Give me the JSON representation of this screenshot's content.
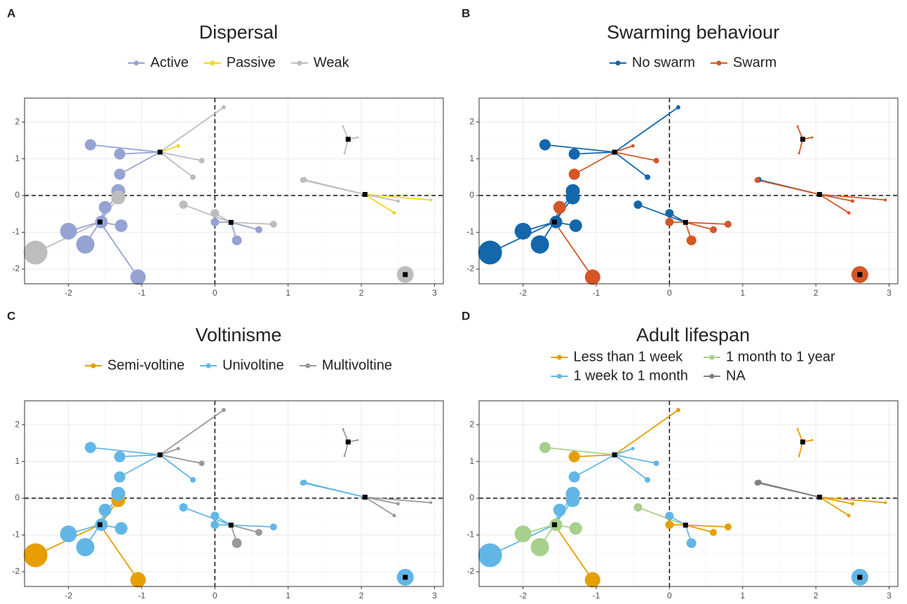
{
  "chart_data": [
    {
      "type": "scatter",
      "label": "A",
      "title": "Dispersal",
      "xlim": [
        -2.6,
        3.12
      ],
      "ylim": [
        -2.4,
        2.65
      ],
      "xticks": [
        -2,
        -1,
        0,
        1,
        2,
        3
      ],
      "yticks": [
        -2,
        -1,
        0,
        1,
        2
      ],
      "grid": true,
      "reference_lines": {
        "x": 0,
        "y": 0
      },
      "centroids": {
        "x": [
          -0.75,
          -1.57,
          0.22,
          2.05,
          1.82,
          2.6
        ],
        "y": [
          1.18,
          -0.72,
          -0.73,
          0.03,
          1.53,
          -2.15
        ]
      },
      "series": [
        {
          "name": "Active",
          "color": "#95a3d3",
          "x": [
            -1.7,
            -1.3,
            -1.3,
            -1.32,
            -1.5,
            -1.55,
            -1.28,
            -2.0,
            -1.77,
            -1.05,
            0,
            0.3,
            0.6
          ],
          "y": [
            1.38,
            1.13,
            0.58,
            0.12,
            -0.32,
            -0.72,
            -0.82,
            -0.97,
            -1.33,
            -2.22,
            -0.72,
            -1.22,
            -0.93
          ],
          "sizes": [
            8,
            8,
            8,
            10,
            9,
            9,
            9,
            12,
            13,
            11,
            6,
            7,
            5
          ],
          "cluster": [
            0,
            0,
            0,
            1,
            1,
            1,
            1,
            1,
            1,
            1,
            2,
            2,
            2
          ]
        },
        {
          "name": "Passive",
          "color": "#f2d81c",
          "x": [
            -0.5,
            2.95,
            2.45
          ],
          "y": [
            1.35,
            -0.12,
            -0.47
          ],
          "sizes": [
            2.5,
            2,
            2.5
          ],
          "cluster": [
            0,
            3,
            3
          ]
        },
        {
          "name": "Weak",
          "color": "#bdbdbd",
          "x": [
            -1.32,
            -2.45,
            0.12,
            -0.18,
            -0.3,
            -0.43,
            0,
            0.8,
            1.2,
            1.22,
            2.5,
            1.75,
            1.77,
            1.95,
            2.6
          ],
          "y": [
            -0.05,
            -1.55,
            2.4,
            0.95,
            0.5,
            -0.25,
            -0.48,
            -0.78,
            0.42,
            0.43,
            -0.15,
            1.88,
            1.15,
            1.58,
            -2.15
          ],
          "sizes": [
            10,
            17,
            3,
            4,
            4,
            6,
            6,
            5,
            4,
            4,
            2.5,
            1.5,
            1.5,
            1.5,
            12
          ],
          "cluster": [
            1,
            1,
            0,
            0,
            0,
            2,
            2,
            2,
            3,
            3,
            3,
            4,
            4,
            4,
            5
          ]
        }
      ]
    },
    {
      "type": "scatter",
      "label": "B",
      "title": "Swarming behaviour",
      "xlim": [
        -2.6,
        3.12
      ],
      "ylim": [
        -2.4,
        2.65
      ],
      "xticks": [
        -2,
        -1,
        0,
        1,
        2,
        3
      ],
      "yticks": [
        -2,
        -1,
        0,
        1,
        2
      ],
      "grid": true,
      "reference_lines": {
        "x": 0,
        "y": 0
      },
      "centroids": {
        "x": [
          -0.75,
          -1.57,
          0.22,
          2.05,
          1.82,
          2.6
        ],
        "y": [
          1.18,
          -0.72,
          -0.73,
          0.03,
          1.53,
          -2.15
        ]
      },
      "series": [
        {
          "name": "No swarm",
          "color": "#1467ab",
          "x": [
            -1.7,
            -1.3,
            -1.32,
            -1.32,
            -1.55,
            -1.28,
            -2.0,
            -1.77,
            -2.45,
            0.12,
            -0.3,
            -0.43,
            0,
            1.22
          ],
          "y": [
            1.38,
            1.13,
            0.12,
            -0.05,
            -0.72,
            -0.82,
            -0.97,
            -1.33,
            -1.55,
            2.4,
            0.5,
            -0.25,
            -0.48,
            0.43
          ],
          "sizes": [
            8,
            8,
            10,
            10,
            9,
            9,
            12,
            13,
            17,
            3,
            4,
            6,
            6,
            4
          ],
          "cluster": [
            0,
            0,
            1,
            1,
            1,
            1,
            1,
            1,
            1,
            0,
            0,
            2,
            2,
            3
          ]
        },
        {
          "name": "Swarm",
          "color": "#d45626",
          "x": [
            -1.3,
            -1.5,
            -1.05,
            -0.5,
            -0.18,
            0,
            0.3,
            0.6,
            0.8,
            1.2,
            2.95,
            2.5,
            2.45,
            1.75,
            1.77,
            1.95,
            2.6
          ],
          "y": [
            0.58,
            -0.32,
            -2.22,
            1.35,
            0.95,
            -0.72,
            -1.22,
            -0.93,
            -0.78,
            0.42,
            -0.12,
            -0.15,
            -0.47,
            1.88,
            1.15,
            1.58,
            -2.15
          ],
          "sizes": [
            8,
            9,
            11,
            2.5,
            4,
            6,
            7,
            5,
            5,
            4,
            2,
            2.5,
            2.5,
            1.5,
            1.5,
            1.5,
            12
          ],
          "cluster": [
            0,
            1,
            1,
            0,
            0,
            2,
            2,
            2,
            2,
            3,
            3,
            3,
            3,
            4,
            4,
            4,
            5
          ]
        }
      ]
    },
    {
      "type": "scatter",
      "label": "C",
      "title": "Voltinisme",
      "xlim": [
        -2.6,
        3.12
      ],
      "ylim": [
        -2.4,
        2.65
      ],
      "xticks": [
        -2,
        -1,
        0,
        1,
        2,
        3
      ],
      "yticks": [
        -2,
        -1,
        0,
        1,
        2
      ],
      "grid": true,
      "reference_lines": {
        "x": 0,
        "y": 0
      },
      "centroids": {
        "x": [
          -0.75,
          -1.57,
          0.22,
          2.05,
          1.82,
          2.6
        ],
        "y": [
          1.18,
          -0.72,
          -0.73,
          0.03,
          1.53,
          -2.15
        ]
      },
      "series": [
        {
          "name": "Semi-voltine",
          "color": "#e69f00",
          "x": [
            -1.32,
            -2.45,
            -1.05
          ],
          "y": [
            -0.05,
            -1.55,
            -2.22
          ],
          "sizes": [
            10,
            17,
            11
          ],
          "cluster": [
            1,
            1,
            1
          ]
        },
        {
          "name": "Univoltine",
          "color": "#62b6e6",
          "x": [
            -1.7,
            -1.3,
            -1.3,
            -1.32,
            -1.5,
            -1.55,
            -1.28,
            -2.0,
            -1.77,
            -0.3,
            -0.43,
            0,
            0,
            0.8,
            1.2,
            1.22,
            2.6
          ],
          "y": [
            1.38,
            1.13,
            0.58,
            0.12,
            -0.32,
            -0.72,
            -0.82,
            -0.97,
            -1.33,
            0.5,
            -0.25,
            -0.48,
            -0.72,
            -0.78,
            0.42,
            0.43,
            -2.15
          ],
          "sizes": [
            8,
            8,
            8,
            10,
            9,
            9,
            9,
            12,
            13,
            4,
            6,
            6,
            6,
            5,
            4,
            4,
            12
          ],
          "cluster": [
            0,
            0,
            0,
            1,
            1,
            1,
            1,
            1,
            1,
            0,
            2,
            2,
            2,
            2,
            3,
            3,
            5
          ]
        },
        {
          "name": "Multivoltine",
          "color": "#9a9a9a",
          "x": [
            0.12,
            -0.5,
            -0.18,
            0.3,
            0.6,
            2.95,
            2.5,
            2.45,
            1.75,
            1.77,
            1.95
          ],
          "y": [
            2.4,
            1.35,
            0.95,
            -1.22,
            -0.93,
            -0.12,
            -0.15,
            -0.47,
            1.88,
            1.15,
            1.58
          ],
          "sizes": [
            3,
            2.5,
            4,
            7,
            5,
            2,
            2.5,
            2.5,
            1.5,
            1.5,
            1.5
          ],
          "cluster": [
            0,
            0,
            0,
            2,
            2,
            3,
            3,
            3,
            4,
            4,
            4
          ]
        }
      ]
    },
    {
      "type": "scatter",
      "label": "D",
      "title": "Adult lifespan",
      "xlim": [
        -2.6,
        3.12
      ],
      "ylim": [
        -2.4,
        2.65
      ],
      "xticks": [
        -2,
        -1,
        0,
        1,
        2,
        3
      ],
      "yticks": [
        -2,
        -1,
        0,
        1,
        2
      ],
      "grid": true,
      "reference_lines": {
        "x": 0,
        "y": 0
      },
      "centroids": {
        "x": [
          -0.75,
          -1.57,
          0.22,
          2.05,
          1.82,
          2.6
        ],
        "y": [
          1.18,
          -0.72,
          -0.73,
          0.03,
          1.53,
          -2.15
        ]
      },
      "series": [
        {
          "name": "Less than 1 week",
          "color": "#e69f00",
          "x": [
            -1.3,
            -1.05,
            0.12,
            0,
            0.6,
            0.8,
            2.95,
            2.5,
            2.45,
            1.75,
            1.77,
            1.95
          ],
          "y": [
            1.13,
            -2.22,
            2.4,
            -0.72,
            -0.93,
            -0.78,
            -0.12,
            -0.15,
            -0.47,
            1.88,
            1.15,
            1.58
          ],
          "sizes": [
            8,
            11,
            3,
            6,
            5,
            5,
            2,
            2.5,
            2.5,
            1.5,
            1.5,
            1.5
          ],
          "cluster": [
            0,
            1,
            0,
            2,
            2,
            2,
            3,
            3,
            3,
            4,
            4,
            4
          ]
        },
        {
          "name": "1 week to 1 month",
          "color": "#62b6e6",
          "x": [
            -1.3,
            -1.32,
            -1.32,
            -1.5,
            -2.45,
            -0.5,
            -0.18,
            -0.3,
            0,
            0.3,
            2.6
          ],
          "y": [
            0.58,
            0.12,
            -0.05,
            -0.32,
            -1.55,
            1.35,
            0.95,
            0.5,
            -0.48,
            -1.22,
            -2.15
          ],
          "sizes": [
            8,
            10,
            10,
            9,
            17,
            2.5,
            4,
            4,
            6,
            7,
            12
          ],
          "cluster": [
            0,
            1,
            1,
            1,
            1,
            0,
            0,
            0,
            2,
            2,
            5
          ]
        },
        {
          "name": "1 month to 1 year",
          "color": "#a7d08c",
          "x": [
            -1.7,
            -1.55,
            -1.28,
            -2.0,
            -1.77,
            -0.43
          ],
          "y": [
            1.38,
            -0.72,
            -0.82,
            -0.97,
            -1.33,
            -0.25
          ],
          "sizes": [
            8,
            9,
            9,
            12,
            13,
            6
          ],
          "cluster": [
            0,
            1,
            1,
            1,
            1,
            2
          ]
        },
        {
          "name": "NA",
          "color": "#7f7f7f",
          "x": [
            1.2,
            1.22
          ],
          "y": [
            0.42,
            0.43
          ],
          "sizes": [
            4,
            4
          ],
          "cluster": [
            3,
            3
          ]
        }
      ]
    }
  ]
}
